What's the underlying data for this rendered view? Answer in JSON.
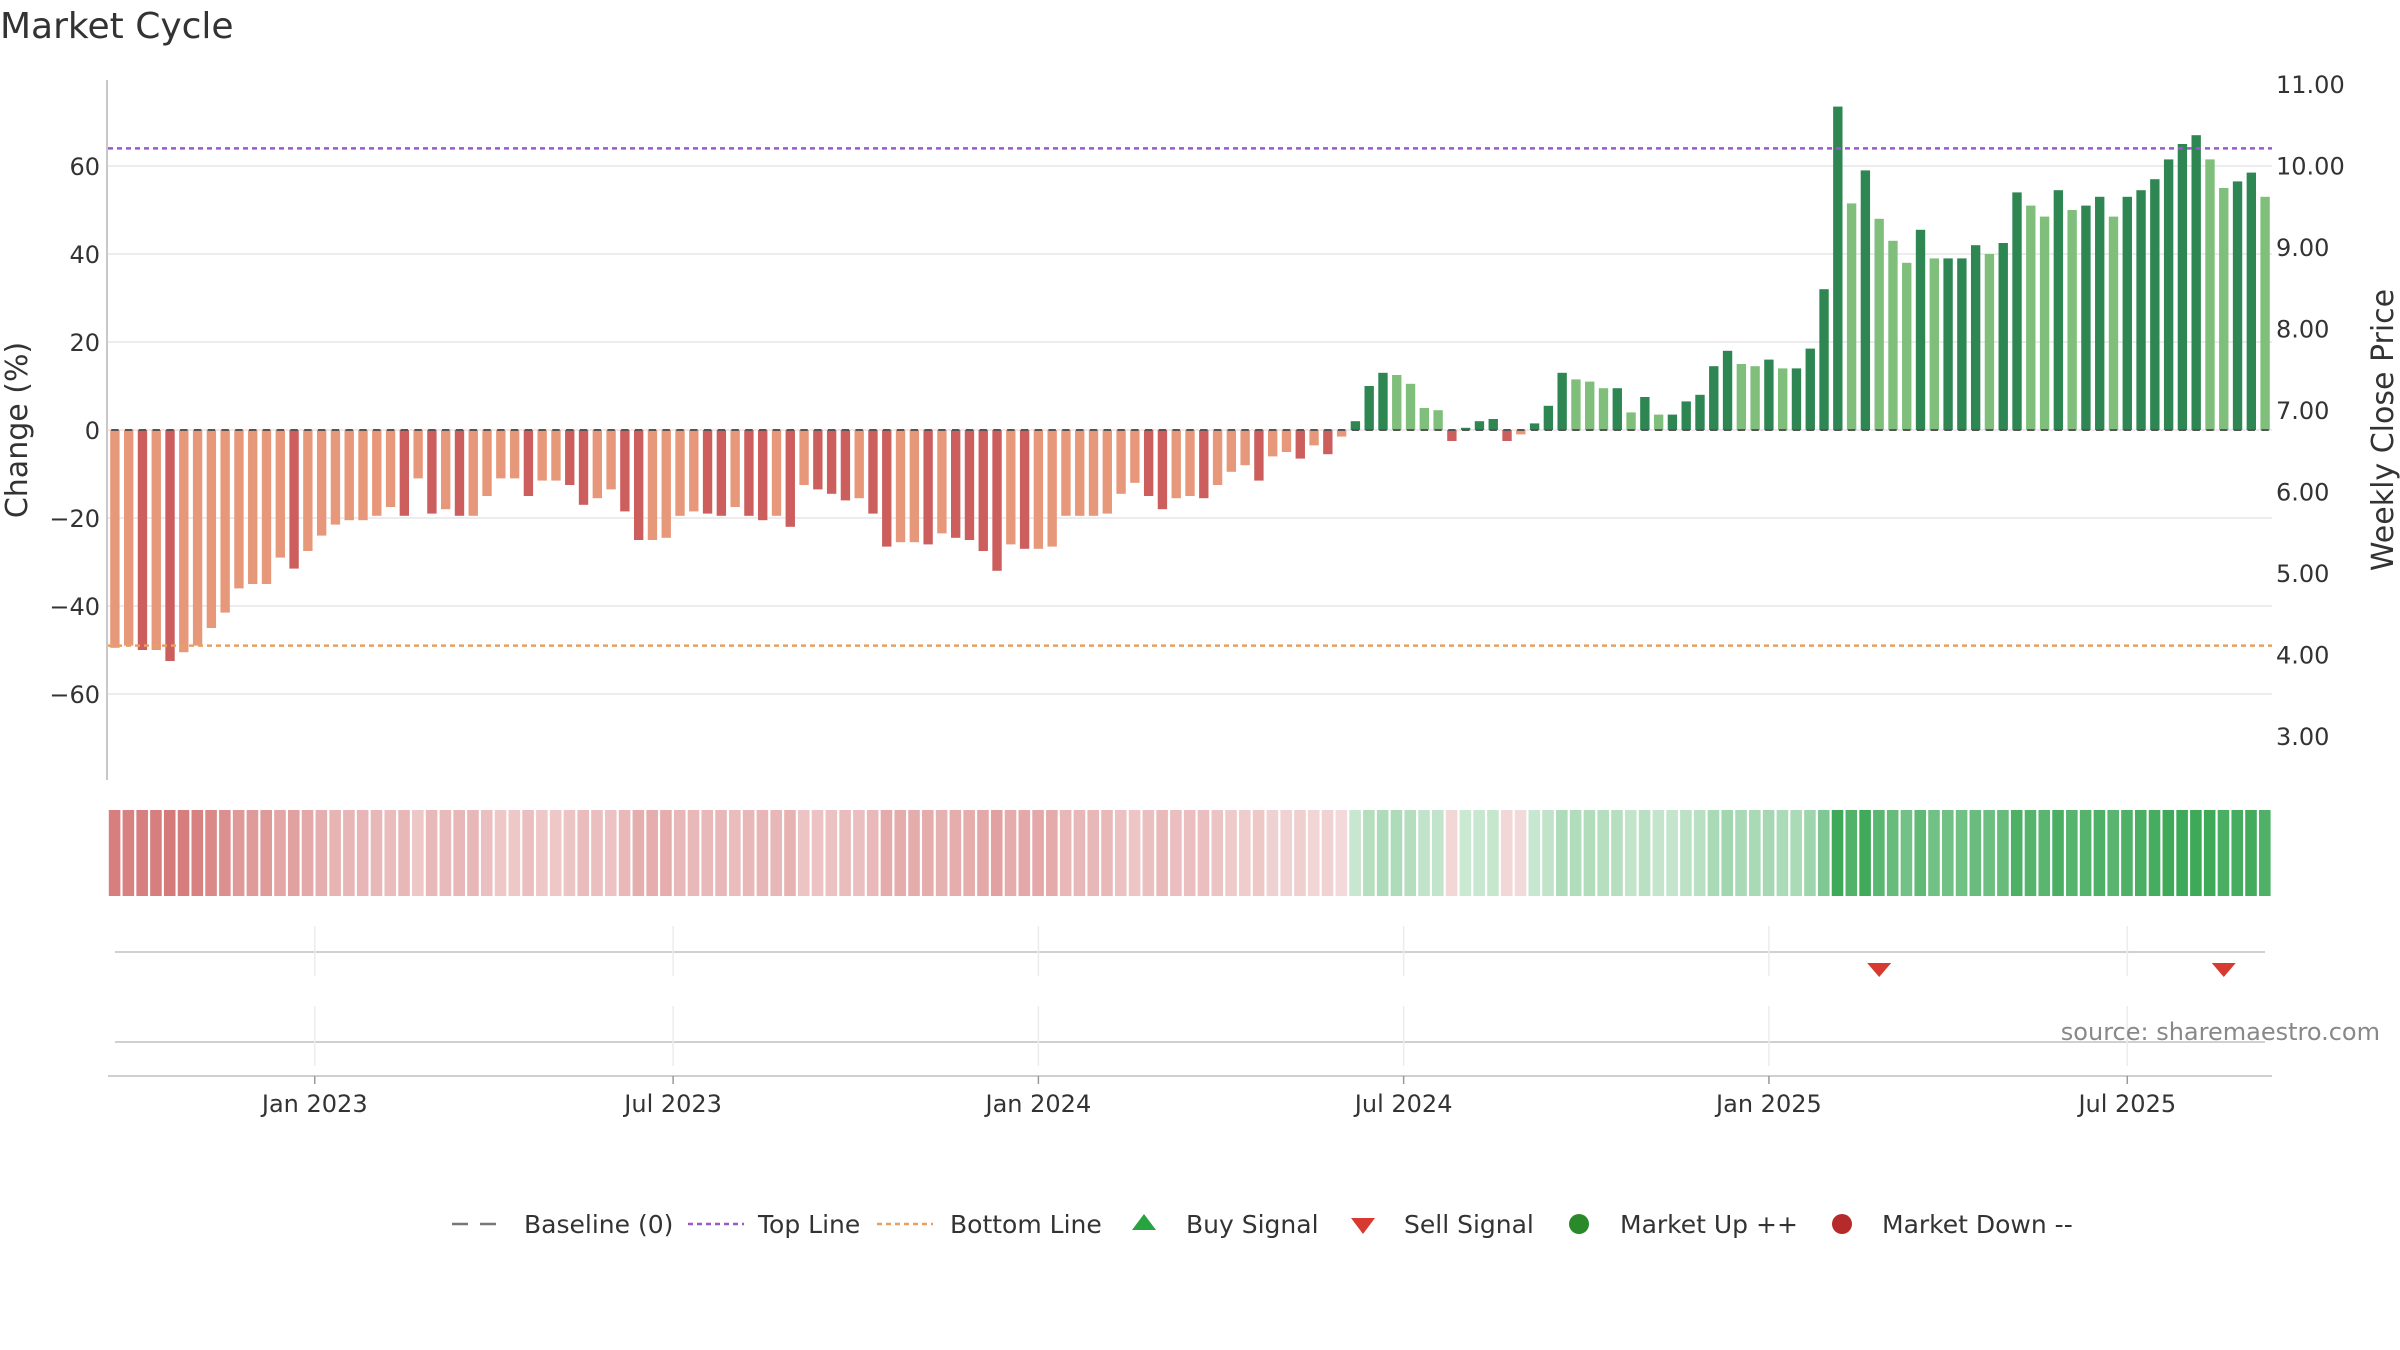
{
  "chart_data": {
    "type": "bar",
    "title": "Market Cycle",
    "ylabel_left": "Change (%)",
    "ylabel_right": "Weekly Close Price",
    "left_ticks": [
      60,
      40,
      20,
      0,
      -20,
      -40,
      -60
    ],
    "left_tick_labels": [
      "60",
      "40",
      "20",
      "0",
      "−20",
      "−40",
      "−60"
    ],
    "right_ticks": [
      "11.00",
      "10.00",
      "9.00",
      "8.00",
      "7.00",
      "6.00",
      "5.00",
      "4.00",
      "3.00"
    ],
    "x_ticks": [
      {
        "label": "Jan 2023",
        "week": 14.5
      },
      {
        "label": "Jul 2023",
        "week": 40.5
      },
      {
        "label": "Jan 2024",
        "week": 67
      },
      {
        "label": "Jul 2024",
        "week": 93.5
      },
      {
        "label": "Jan 2025",
        "week": 120
      },
      {
        "label": "Jul 2025",
        "week": 146
      }
    ],
    "top_line": 64,
    "bottom_line": -49,
    "baseline": 0,
    "series_name": "Change (%)",
    "values": [
      -49.5,
      -49,
      -50,
      -50,
      -52.5,
      -50.5,
      -49,
      -45,
      -41.5,
      -36,
      -35,
      -35,
      -29,
      -31.5,
      -27.5,
      -24,
      -21.5,
      -20.5,
      -20.5,
      -19.5,
      -17.5,
      -19.5,
      -11,
      -19,
      -18,
      -19.5,
      -19.5,
      -15,
      -11,
      -11,
      -15,
      -11.5,
      -11.5,
      -12.5,
      -17,
      -15.5,
      -13.5,
      -18.5,
      -25,
      -25,
      -24.5,
      -19.5,
      -18.5,
      -19,
      -19.5,
      -17.5,
      -19.5,
      -20.5,
      -19.5,
      -22,
      -12.5,
      -13.5,
      -14.5,
      -16,
      -15.5,
      -19,
      -26.5,
      -25.5,
      -25.5,
      -26,
      -23.5,
      -24.5,
      -25,
      -27.5,
      -32,
      -26,
      -27,
      -27,
      -26.5,
      -19.5,
      -19.5,
      -19.5,
      -19,
      -14.5,
      -12,
      -15,
      -18,
      -15.5,
      -15,
      -15.5,
      -12.5,
      -9.5,
      -8,
      -11.5,
      -6,
      -5,
      -6.5,
      -3.5,
      -5.5,
      -1.5,
      2,
      10,
      13,
      12.5,
      10.5,
      5,
      4.5,
      -2.5,
      0.5,
      2,
      2.5,
      -2.5,
      -1,
      1.5,
      5.5,
      13,
      11.5,
      11,
      9.5,
      9.5,
      4,
      7.5,
      3.5,
      3.5,
      6.5,
      8,
      14.5,
      18,
      15,
      14.5,
      16,
      14,
      14,
      18.5,
      32,
      73.5,
      51.5,
      59,
      48,
      43,
      38,
      45.5,
      39,
      39,
      39,
      42,
      40,
      42.5,
      54,
      51,
      48.5,
      54.5,
      50,
      51,
      53,
      48.5,
      53,
      54.5,
      57,
      61.5,
      65,
      67,
      61.5,
      55,
      56.5,
      58.5,
      53
    ],
    "signals": {
      "sell_weeks": [
        128,
        153
      ],
      "buy_weeks": []
    },
    "legend": [
      {
        "key": "baseline",
        "label": "Baseline (0)",
        "color": "#777777"
      },
      {
        "key": "top",
        "label": "Top Line",
        "color": "#9a59c8"
      },
      {
        "key": "bottom",
        "label": "Bottom Line",
        "color": "#e8a062"
      },
      {
        "key": "buy",
        "label": "Buy Signal",
        "color": "#27a33f"
      },
      {
        "key": "sell",
        "label": "Sell Signal",
        "color": "#d63a30"
      },
      {
        "key": "up",
        "label": "Market Up ++",
        "color": "#2a8a2a"
      },
      {
        "key": "down",
        "label": "Market Down --",
        "color": "#b52a2a"
      }
    ],
    "colors": {
      "pos_dark": "#2e8653",
      "pos_light": "#7fbf7b",
      "neg_dark": "#cc5e5e",
      "neg_light": "#e8987a",
      "top_line": "#9a59c8",
      "bottom_line": "#e8a062",
      "sell": "#d63a30",
      "buy": "#27a33f"
    },
    "source": "source: sharemaestro.com"
  }
}
